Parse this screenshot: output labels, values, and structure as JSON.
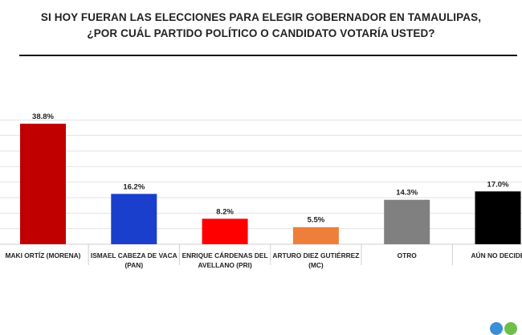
{
  "chart_data": {
    "type": "bar",
    "title": [
      "SI HOY FUERAN LAS ELECCIONES PARA ELEGIR GOBERNADOR EN TAMAULIPAS,",
      "¿POR CUÁL PARTIDO POLÍTICO O CANDIDATO VOTARÍA USTED?"
    ],
    "xlabel": "",
    "ylabel": "",
    "ylim": [
      0,
      45
    ],
    "grid": true,
    "categories": [
      [
        "MAKI ORTÍZ (MORENA)"
      ],
      [
        "ISMAEL CABEZA DE VACA",
        "(PAN)"
      ],
      [
        "ENRIQUE CÁRDENAS DEL",
        "AVELLANO (PRI)"
      ],
      [
        "ARTURO DIEZ GUTIÉRREZ",
        "(MC)"
      ],
      [
        "OTRO"
      ],
      [
        "AÚN NO DECIDE"
      ]
    ],
    "values": [
      38.8,
      16.2,
      8.2,
      5.5,
      14.3,
      17.0
    ],
    "value_labels": [
      "38.8%",
      "16.2%",
      "8.2%",
      "5.5%",
      "14.3%",
      "17.0%"
    ],
    "colors": [
      "#c00000",
      "#1a3fcc",
      "#ff0000",
      "#ee7f3a",
      "#808080",
      "#000000"
    ]
  }
}
